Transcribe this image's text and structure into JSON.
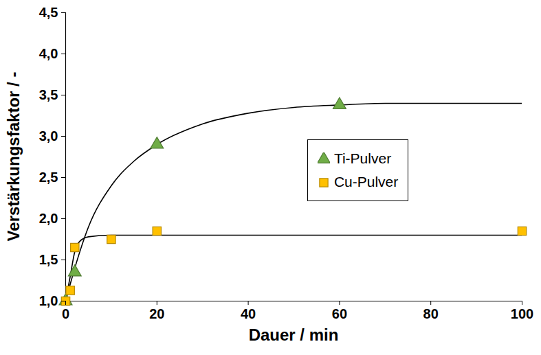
{
  "chart_data": {
    "type": "scatter",
    "x_label": "Dauer / min",
    "y_label": "Verstärkungsfaktor / -",
    "xlim": [
      0,
      100
    ],
    "xticks": [
      0,
      20,
      40,
      60,
      80,
      100
    ],
    "ylim": [
      1.0,
      4.5
    ],
    "yticks": [
      {
        "value": 1.0,
        "label": "1,0"
      },
      {
        "value": 1.5,
        "label": "1,5"
      },
      {
        "value": 2.0,
        "label": "2,0"
      },
      {
        "value": 2.5,
        "label": "2,5"
      },
      {
        "value": 3.0,
        "label": "3,0"
      },
      {
        "value": 3.5,
        "label": "3,5"
      },
      {
        "value": 4.0,
        "label": "4,0"
      },
      {
        "value": 4.5,
        "label": "4,5"
      }
    ],
    "grid": false,
    "legend": "right",
    "series": [
      {
        "name": "Ti-Pulver",
        "color": "#70ad47",
        "marker": "triangle",
        "line_style": "solid",
        "x": [
          0,
          2,
          20,
          60
        ],
        "values": [
          1.0,
          1.35,
          2.9,
          3.38
        ],
        "curve": {
          "x": [
            0,
            2,
            5,
            10,
            15,
            20,
            30,
            40,
            50,
            60,
            70,
            100
          ],
          "values": [
            1.0,
            1.4,
            1.9,
            2.4,
            2.7,
            2.9,
            3.15,
            3.28,
            3.35,
            3.38,
            3.4,
            3.4
          ]
        }
      },
      {
        "name": "Cu-Pulver",
        "color": "#ffc000",
        "marker": "square",
        "line_style": "solid",
        "x": [
          0,
          1,
          2,
          10,
          20,
          100
        ],
        "values": [
          1.0,
          1.13,
          1.65,
          1.75,
          1.85,
          1.85
        ],
        "curve": {
          "x": [
            0,
            1,
            2,
            3,
            5,
            10,
            20,
            100
          ],
          "values": [
            1.0,
            1.3,
            1.6,
            1.72,
            1.78,
            1.8,
            1.8,
            1.8
          ]
        }
      }
    ]
  }
}
